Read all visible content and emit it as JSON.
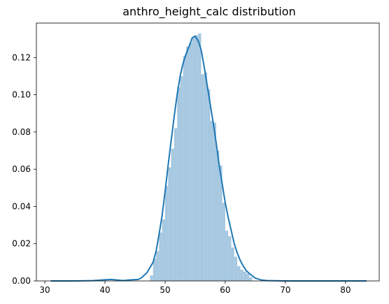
{
  "chart_data": {
    "type": "bar",
    "title": "anthro_height_calc distribution",
    "xlabel": "",
    "ylabel": "",
    "xlim": [
      28.6,
      85.6
    ],
    "ylim": [
      0,
      0.1385
    ],
    "xticks": [
      30,
      40,
      50,
      60,
      70,
      80
    ],
    "xtick_labels": [
      "30",
      "40",
      "50",
      "60",
      "70",
      "80"
    ],
    "yticks": [
      0.0,
      0.02,
      0.04,
      0.06,
      0.08,
      0.1,
      0.12
    ],
    "ytick_labels": [
      "0.00",
      "0.02",
      "0.04",
      "0.06",
      "0.08",
      "0.10",
      "0.12"
    ],
    "histogram": {
      "bin_width": 0.5,
      "color": "#a6c8e0",
      "bins": [
        {
          "x": 47.5,
          "y": 0.003
        },
        {
          "x": 48.0,
          "y": 0.012
        },
        {
          "x": 48.5,
          "y": 0.016
        },
        {
          "x": 49.0,
          "y": 0.026
        },
        {
          "x": 49.5,
          "y": 0.033
        },
        {
          "x": 50.0,
          "y": 0.051
        },
        {
          "x": 50.5,
          "y": 0.061
        },
        {
          "x": 51.0,
          "y": 0.071
        },
        {
          "x": 51.5,
          "y": 0.082
        },
        {
          "x": 52.0,
          "y": 0.104
        },
        {
          "x": 52.5,
          "y": 0.11
        },
        {
          "x": 53.0,
          "y": 0.121
        },
        {
          "x": 53.5,
          "y": 0.126
        },
        {
          "x": 54.0,
          "y": 0.128
        },
        {
          "x": 54.5,
          "y": 0.131
        },
        {
          "x": 55.0,
          "y": 0.132
        },
        {
          "x": 55.5,
          "y": 0.133
        },
        {
          "x": 56.0,
          "y": 0.111
        },
        {
          "x": 56.5,
          "y": 0.112
        },
        {
          "x": 57.0,
          "y": 0.103
        },
        {
          "x": 57.5,
          "y": 0.086
        },
        {
          "x": 58.0,
          "y": 0.085
        },
        {
          "x": 58.5,
          "y": 0.07
        },
        {
          "x": 59.0,
          "y": 0.062
        },
        {
          "x": 59.5,
          "y": 0.042
        },
        {
          "x": 60.0,
          "y": 0.027
        },
        {
          "x": 60.5,
          "y": 0.024
        },
        {
          "x": 61.0,
          "y": 0.018
        },
        {
          "x": 61.5,
          "y": 0.013
        },
        {
          "x": 62.0,
          "y": 0.008
        },
        {
          "x": 62.5,
          "y": 0.006
        },
        {
          "x": 63.0,
          "y": 0.005
        },
        {
          "x": 63.5,
          "y": 0.004
        },
        {
          "x": 64.0,
          "y": 0.002
        }
      ]
    },
    "kde": {
      "color": "#1f77b4",
      "x": [
        31,
        35,
        38,
        40,
        41,
        42,
        43,
        44,
        45,
        45.5,
        46,
        47,
        48,
        48.5,
        49,
        49.5,
        50,
        50.5,
        51,
        51.5,
        52,
        52.5,
        53,
        53.5,
        54,
        54.5,
        55,
        55.5,
        56,
        56.5,
        57,
        57.5,
        58,
        58.5,
        59,
        59.5,
        60,
        60.5,
        61,
        61.5,
        62,
        62.5,
        63,
        63.5,
        64,
        65,
        66,
        67,
        70,
        75,
        80,
        83.5
      ],
      "y": [
        0.0,
        0.0,
        0.0002,
        0.0006,
        0.0008,
        0.0005,
        0.0002,
        0.0005,
        0.0007,
        0.0008,
        0.0015,
        0.0045,
        0.01,
        0.016,
        0.025,
        0.035,
        0.048,
        0.062,
        0.075,
        0.088,
        0.1,
        0.11,
        0.117,
        0.122,
        0.126,
        0.1305,
        0.1315,
        0.129,
        0.124,
        0.115,
        0.105,
        0.095,
        0.085,
        0.074,
        0.062,
        0.052,
        0.042,
        0.034,
        0.027,
        0.02,
        0.015,
        0.011,
        0.008,
        0.0055,
        0.004,
        0.0015,
        0.0005,
        0.0002,
        0.0,
        0.0,
        0.0,
        0.0
      ]
    }
  }
}
